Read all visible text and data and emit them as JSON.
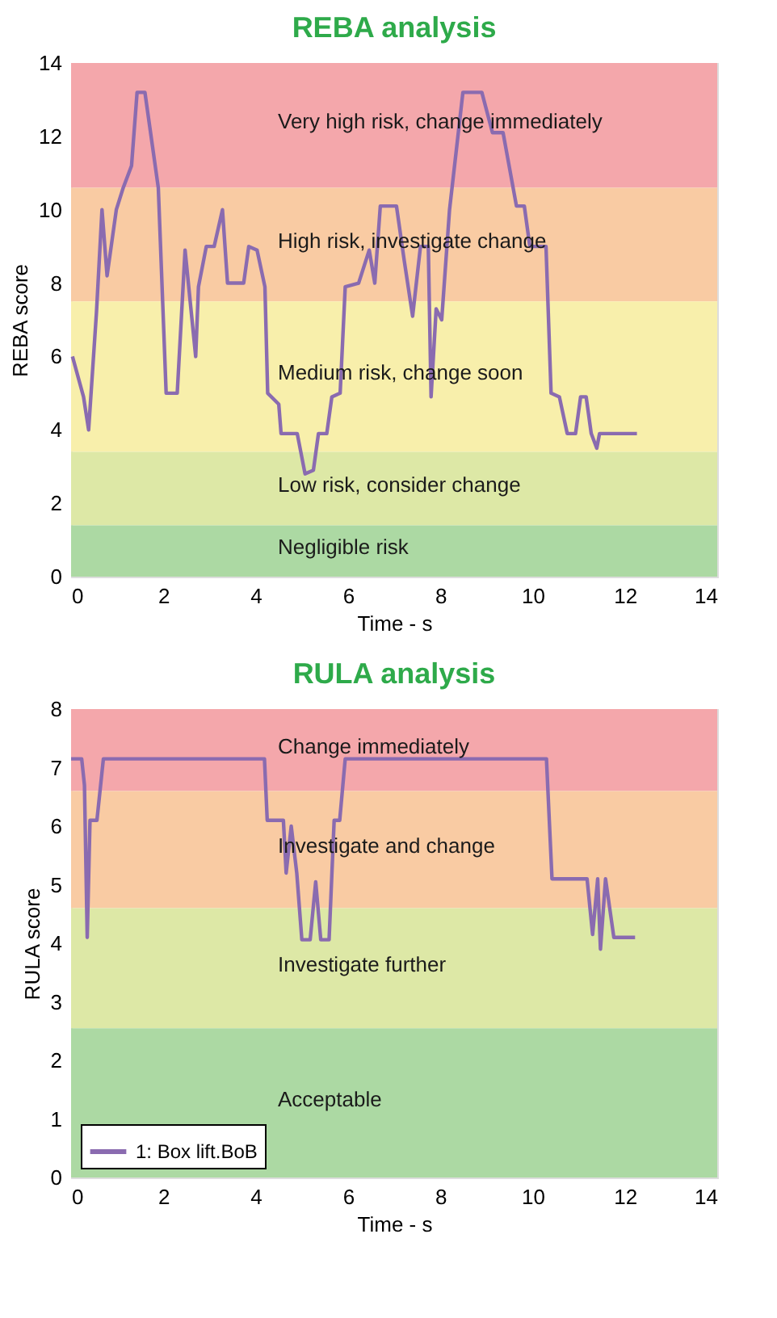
{
  "chart_data": [
    {
      "type": "line",
      "title": "REBA analysis",
      "xlabel": "Time - s",
      "ylabel": "REBA score",
      "xlim": [
        0,
        14
      ],
      "xticks": [
        0,
        2,
        4,
        6,
        8,
        10,
        12,
        14
      ],
      "ylim": [
        0,
        14
      ],
      "yticks": [
        0,
        2,
        4,
        6,
        8,
        10,
        12,
        14
      ],
      "grid": false,
      "marker": "none",
      "line_style": "solid",
      "legend": false,
      "bands": [
        {
          "axis": "y",
          "from": 10.6,
          "to": 14,
          "label": "Very high risk, change immediately",
          "color": "#f4a7ab"
        },
        {
          "axis": "y",
          "from": 7.5,
          "to": 10.6,
          "label": "High risk, investigate change",
          "color": "#f9cba3"
        },
        {
          "axis": "y",
          "from": 3.4,
          "to": 7.5,
          "label": "Medium risk, change soon",
          "color": "#f8efab"
        },
        {
          "axis": "y",
          "from": 1.4,
          "to": 3.4,
          "label": "Low risk, consider change",
          "color": "#dde8a6"
        },
        {
          "axis": "y",
          "from": 0,
          "to": 1.4,
          "label": "Negligible risk",
          "color": "#acd9a3"
        }
      ],
      "series": [
        {
          "color": "#8a6bb0",
          "x": [
            0.03,
            0.27,
            0.38,
            0.55,
            0.67,
            0.78,
            0.98,
            1.13,
            1.31,
            1.43,
            1.6,
            1.89,
            2.06,
            2.3,
            2.47,
            2.7,
            2.76,
            2.93,
            3.1,
            3.28,
            3.39,
            3.74,
            3.85,
            4.03,
            4.2,
            4.26,
            4.5,
            4.55,
            4.9,
            5.07,
            5.25,
            5.36,
            5.54,
            5.65,
            5.83,
            5.94,
            6.23,
            6.46,
            6.58,
            6.7,
            7.05,
            7.22,
            7.4,
            7.57,
            7.74,
            7.8,
            7.91,
            8.03,
            8.2,
            8.49,
            8.9,
            9.13,
            9.36,
            9.65,
            9.82,
            9.94,
            10.29,
            10.4,
            10.58,
            10.75,
            10.93,
            11.04,
            11.16,
            11.27,
            11.39,
            11.45,
            12.26
          ],
          "values": [
            6.0,
            4.9,
            4.0,
            7.2,
            10.0,
            8.2,
            10.0,
            10.6,
            11.2,
            13.2,
            13.2,
            10.6,
            5.0,
            5.0,
            8.9,
            6.0,
            7.9,
            9.0,
            9.0,
            10.0,
            8.0,
            8.0,
            9.0,
            8.9,
            7.9,
            5.0,
            4.7,
            3.9,
            3.9,
            2.8,
            2.9,
            3.9,
            3.9,
            4.9,
            5.0,
            7.9,
            8.0,
            8.9,
            8.0,
            10.1,
            10.1,
            8.6,
            7.1,
            9.0,
            9.0,
            4.9,
            7.3,
            7.0,
            10.0,
            13.2,
            13.2,
            12.1,
            12.1,
            10.1,
            10.1,
            9.0,
            9.0,
            5.0,
            4.9,
            3.9,
            3.9,
            4.9,
            4.9,
            3.9,
            3.5,
            3.9,
            3.9
          ]
        }
      ]
    },
    {
      "type": "line",
      "title": "RULA analysis",
      "xlabel": "Time - s",
      "ylabel": "RULA score",
      "xlim": [
        0,
        14
      ],
      "xticks": [
        0,
        2,
        4,
        6,
        8,
        10,
        12,
        14
      ],
      "ylim": [
        0,
        8
      ],
      "yticks": [
        0,
        1,
        2,
        3,
        4,
        5,
        6,
        7,
        8
      ],
      "grid": false,
      "marker": "none",
      "line_style": "solid",
      "legend": "bottom left",
      "bands": [
        {
          "axis": "y",
          "from": 6.6,
          "to": 8,
          "label": "Change immediately",
          "color": "#f4a7ab"
        },
        {
          "axis": "y",
          "from": 4.6,
          "to": 6.6,
          "label": "Investigate and change",
          "color": "#f9cba3"
        },
        {
          "axis": "y",
          "from": 2.55,
          "to": 4.6,
          "label": "Investigate further",
          "color": "#dde8a6"
        },
        {
          "axis": "y",
          "from": 0,
          "to": 2.55,
          "label": "Acceptable",
          "color": "#acd9a3"
        }
      ],
      "series": [
        {
          "name": "1: Box lift.BoB",
          "color": "#8a6bb0",
          "x": [
            0,
            0.23,
            0.29,
            0.35,
            0.41,
            0.56,
            0.7,
            4.19,
            4.25,
            4.6,
            4.66,
            4.77,
            4.89,
            5.0,
            5.18,
            5.3,
            5.41,
            5.59,
            5.7,
            5.82,
            5.94,
            10.3,
            10.42,
            11.18,
            11.3,
            11.41,
            11.47,
            11.58,
            11.76,
            12.22
          ],
          "values": [
            7.15,
            7.15,
            6.7,
            4.1,
            6.1,
            6.1,
            7.15,
            7.15,
            6.1,
            6.1,
            5.2,
            6.0,
            5.2,
            4.06,
            4.06,
            5.05,
            4.06,
            4.06,
            6.1,
            6.1,
            7.15,
            7.15,
            5.1,
            5.1,
            4.15,
            5.1,
            3.9,
            5.1,
            4.1,
            4.1
          ]
        }
      ]
    }
  ]
}
